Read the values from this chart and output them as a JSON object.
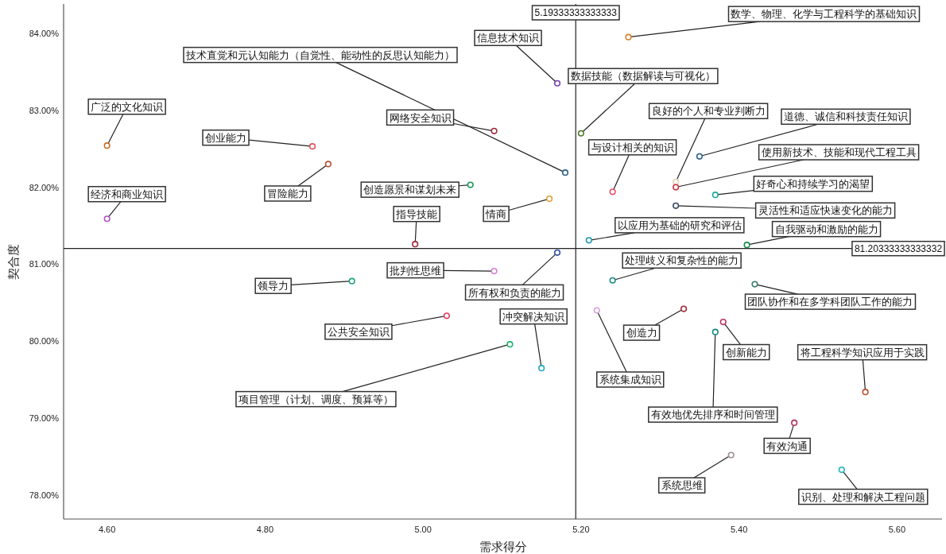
{
  "chart_data": {
    "type": "scatter",
    "xlabel": "需求得分",
    "ylabel": "契合度",
    "xlim": [
      4.545,
      5.657
    ],
    "ylim": [
      77.69,
      84.38
    ],
    "xticks": [
      {
        "value": 4.6,
        "label": "4.60"
      },
      {
        "value": 4.8,
        "label": "4.80"
      },
      {
        "value": 5.0,
        "label": "5.00"
      },
      {
        "value": 5.2,
        "label": "5.20"
      },
      {
        "value": 5.4,
        "label": "5.40"
      },
      {
        "value": 5.6,
        "label": "5.60"
      }
    ],
    "yticks": [
      {
        "value": 78,
        "label": "78.00%"
      },
      {
        "value": 79,
        "label": "79.00%"
      },
      {
        "value": 80,
        "label": "80.00%"
      },
      {
        "value": 81,
        "label": "81.00%"
      },
      {
        "value": 82,
        "label": "82.00%"
      },
      {
        "value": 83,
        "label": "83.00%"
      },
      {
        "value": 84,
        "label": "84.00%"
      }
    ],
    "marker": "circle",
    "grid": false,
    "series": [
      {
        "x": [
          5.26,
          5.17,
          5.18,
          5.2,
          4.6,
          4.86,
          4.88,
          5.09,
          4.6,
          5.06,
          4.99,
          5.16,
          5.32,
          5.32,
          5.35,
          5.24,
          5.37,
          5.32,
          5.21,
          5.41,
          5.24,
          5.42,
          5.17,
          5.09,
          4.91,
          5.03,
          5.15,
          5.11,
          5.22,
          5.33,
          5.38,
          5.37,
          5.56,
          5.47,
          5.39,
          5.53
        ],
        "values": [
          83.95,
          83.35,
          82.19,
          82.7,
          82.54,
          82.53,
          82.3,
          82.73,
          81.59,
          82.03,
          81.26,
          81.85,
          82.07,
          82.0,
          82.4,
          81.94,
          81.9,
          81.76,
          81.31,
          81.25,
          80.79,
          80.74,
          81.15,
          80.91,
          80.78,
          80.33,
          79.65,
          79.96,
          80.4,
          80.42,
          80.25,
          80.12,
          79.34,
          78.94,
          78.52,
          78.33
        ],
        "colors": [
          "#d9822b",
          "#7b3fb0",
          "#2c5f8a",
          "#4f7a28",
          "#c8702a",
          "#e0505a",
          "#b5533a",
          "#a02a3a",
          "#b050c0",
          "#1a9a5a",
          "#a02a3a",
          "#e0a040",
          "#e0d4b8",
          "#d03040",
          "#2c5f8a",
          "#e8506a",
          "#1aaa9a",
          "#3a4a60",
          "#1a9ab0",
          "#1a8a50",
          "#1a8a8a",
          "#3a7a6a",
          "#2c4f9a",
          "#d080d0",
          "#20a080",
          "#e04060",
          "#20a8c0",
          "#20b070",
          "#d8a0d8",
          "#a02a3a",
          "#c03060",
          "#1a8a80",
          "#c05030",
          "#b03060",
          "#a09090",
          "#20b0c0"
        ]
      }
    ],
    "ref_lines": [
      {
        "axis": "x",
        "value": 5.19333333333333,
        "label": "5.19333333333333"
      },
      {
        "axis": "y",
        "value": 81.20333333333332,
        "label": "81.20333333333332"
      }
    ],
    "annotations": [
      {
        "text": "数学、物理、化学与工程科学的基础知识",
        "x": 5.26,
        "y": 83.95
      },
      {
        "text": "信息技术知识",
        "x": 5.17,
        "y": 83.35
      },
      {
        "text": "技术直觉和元认知能力（自觉性、能动性的反思认知能力）",
        "x": 5.18,
        "y": 82.19
      },
      {
        "text": "数据技能（数据解读与可视化）",
        "x": 5.2,
        "y": 82.7
      },
      {
        "text": "广泛的文化知识",
        "x": 4.6,
        "y": 82.54
      },
      {
        "text": "创业能力",
        "x": 4.86,
        "y": 82.53
      },
      {
        "text": "冒险能力",
        "x": 4.88,
        "y": 82.3
      },
      {
        "text": "网络安全知识",
        "x": 5.09,
        "y": 82.73
      },
      {
        "text": "经济和商业知识",
        "x": 4.6,
        "y": 81.59
      },
      {
        "text": "创造愿景和谋划未来",
        "x": 5.06,
        "y": 82.03
      },
      {
        "text": "指导技能",
        "x": 4.99,
        "y": 81.26
      },
      {
        "text": "情商",
        "x": 5.16,
        "y": 81.85
      },
      {
        "text": "良好的个人和专业判断力",
        "x": 5.32,
        "y": 82.07
      },
      {
        "text": "使用新技术、技能和现代工程工具",
        "x": 5.32,
        "y": 82.0
      },
      {
        "text": "道德、诚信和科技责任知识",
        "x": 5.35,
        "y": 82.4
      },
      {
        "text": "与设计相关的知识",
        "x": 5.24,
        "y": 81.94
      },
      {
        "text": "好奇心和持续学习的渴望",
        "x": 5.37,
        "y": 81.9
      },
      {
        "text": "灵活性和适应快速变化的能力",
        "x": 5.32,
        "y": 81.76
      },
      {
        "text": "以应用为基础的研究和评估",
        "x": 5.21,
        "y": 81.31
      },
      {
        "text": "自我驱动和激励的能力",
        "x": 5.41,
        "y": 81.25
      },
      {
        "text": "处理歧义和复杂性的能力",
        "x": 5.24,
        "y": 80.79
      },
      {
        "text": "团队协作和在多学科团队工作的能力",
        "x": 5.42,
        "y": 80.74
      },
      {
        "text": "所有权和负责的能力",
        "x": 5.17,
        "y": 81.15
      },
      {
        "text": "批判性思维",
        "x": 5.09,
        "y": 80.91
      },
      {
        "text": "领导力",
        "x": 4.91,
        "y": 80.78
      },
      {
        "text": "公共安全知识",
        "x": 5.03,
        "y": 80.33
      },
      {
        "text": "冲突解决知识",
        "x": 5.15,
        "y": 79.65
      },
      {
        "text": "项目管理（计划、调度、预算等）",
        "x": 5.11,
        "y": 79.96
      },
      {
        "text": "系统集成知识",
        "x": 5.22,
        "y": 80.4
      },
      {
        "text": "创造力",
        "x": 5.33,
        "y": 80.42
      },
      {
        "text": "创新能力",
        "x": 5.38,
        "y": 80.25
      },
      {
        "text": "有效地优先排序和时间管理",
        "x": 5.37,
        "y": 80.12
      },
      {
        "text": "将工程科学知识应用于实践",
        "x": 5.56,
        "y": 79.34
      },
      {
        "text": "有效沟通",
        "x": 5.47,
        "y": 78.94
      },
      {
        "text": "系统思维",
        "x": 5.39,
        "y": 78.52
      },
      {
        "text": "识别、处理和解决工程问题",
        "x": 5.53,
        "y": 78.33
      }
    ]
  }
}
